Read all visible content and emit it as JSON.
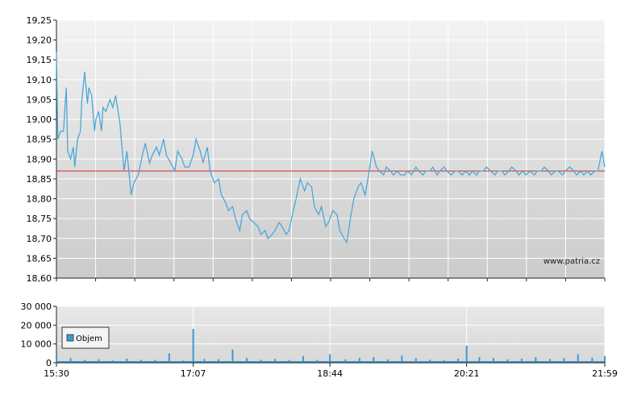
{
  "chart_data": [
    {
      "type": "line",
      "panel": "price",
      "xlim": [
        "15:30",
        "21:59"
      ],
      "ylim": [
        18.6,
        19.25
      ],
      "y_ticks": [
        "19,25",
        "19,20",
        "19,15",
        "19,10",
        "19,05",
        "19,00",
        "18,95",
        "18,90",
        "18,85",
        "18,80",
        "18,75",
        "18,70",
        "18,65",
        "18,60"
      ],
      "reference_line": 18.87,
      "watermark": "www.patria.cz",
      "colors": {
        "line": "#4aa8d8",
        "reference": "#d22b2b",
        "grid": "#ffffff",
        "bg_top": "#f0f0f0",
        "bg_bottom": "#cfcfcf"
      },
      "grid": true,
      "series": [
        {
          "x": [
            "15:30",
            "15:31",
            "15:33",
            "15:35",
            "15:37",
            "15:38",
            "15:40",
            "15:42",
            "15:43",
            "15:45",
            "15:47",
            "15:48",
            "15:50",
            "15:52",
            "15:53",
            "15:55",
            "15:57",
            "15:58",
            "16:00",
            "16:02",
            "16:03",
            "16:05",
            "16:07",
            "16:08",
            "16:10",
            "16:12",
            "16:15",
            "16:18",
            "16:20",
            "16:23",
            "16:25",
            "16:28",
            "16:31",
            "16:33",
            "16:36",
            "16:38",
            "16:41",
            "16:43",
            "16:46",
            "16:48",
            "16:51",
            "16:54",
            "16:56",
            "16:59",
            "17:01",
            "17:04",
            "17:07",
            "17:09",
            "17:12",
            "17:14",
            "17:17",
            "17:19",
            "17:22",
            "17:25",
            "17:27",
            "17:30",
            "17:32",
            "17:35",
            "17:37",
            "17:40",
            "17:42",
            "17:45",
            "17:47",
            "17:50",
            "17:53",
            "17:55",
            "17:58",
            "18:00",
            "18:03",
            "18:05",
            "18:08",
            "18:10",
            "18:13",
            "18:15",
            "18:18",
            "18:20",
            "18:23",
            "18:26",
            "18:28",
            "18:31",
            "18:33",
            "18:36",
            "18:38",
            "18:41",
            "18:43",
            "18:46",
            "18:49",
            "18:51",
            "18:54",
            "18:56",
            "18:59",
            "19:01",
            "19:04",
            "19:06",
            "19:09",
            "19:11",
            "19:14",
            "19:17",
            "19:19",
            "19:22",
            "19:24",
            "19:27",
            "19:29",
            "19:32",
            "19:34",
            "19:37",
            "19:39",
            "19:42",
            "19:45",
            "19:47",
            "19:50",
            "19:52",
            "19:55",
            "19:57",
            "20:00",
            "20:02",
            "20:05",
            "20:07",
            "20:10",
            "20:13",
            "20:15",
            "20:18",
            "20:20",
            "20:23",
            "20:25",
            "20:28",
            "20:30",
            "20:33",
            "20:35",
            "20:38",
            "20:41",
            "20:43",
            "20:46",
            "20:48",
            "20:51",
            "20:53",
            "20:56",
            "20:58",
            "21:01",
            "21:03",
            "21:06",
            "21:09",
            "21:11",
            "21:14",
            "21:16",
            "21:19",
            "21:21",
            "21:24",
            "21:26",
            "21:29",
            "21:31",
            "21:34",
            "21:37",
            "21:39",
            "21:42",
            "21:44",
            "21:47",
            "21:49",
            "21:52",
            "21:54",
            "21:57",
            "21:59"
          ],
          "y": [
            19.17,
            18.95,
            18.97,
            18.97,
            19.08,
            18.92,
            18.9,
            18.93,
            18.88,
            18.95,
            18.97,
            19.05,
            19.12,
            19.04,
            19.08,
            19.06,
            18.97,
            19.0,
            19.02,
            18.97,
            19.03,
            19.02,
            19.04,
            19.05,
            19.03,
            19.06,
            18.99,
            18.87,
            18.92,
            18.81,
            18.84,
            18.86,
            18.91,
            18.94,
            18.89,
            18.91,
            18.93,
            18.91,
            18.95,
            18.91,
            18.89,
            18.87,
            18.92,
            18.9,
            18.88,
            18.88,
            18.91,
            18.95,
            18.92,
            18.89,
            18.93,
            18.87,
            18.84,
            18.85,
            18.81,
            18.79,
            18.77,
            18.78,
            18.75,
            18.72,
            18.76,
            18.77,
            18.75,
            18.74,
            18.73,
            18.71,
            18.72,
            18.7,
            18.71,
            18.72,
            18.74,
            18.73,
            18.71,
            18.72,
            18.77,
            18.8,
            18.85,
            18.82,
            18.84,
            18.83,
            18.78,
            18.76,
            18.78,
            18.73,
            18.74,
            18.77,
            18.76,
            18.72,
            18.7,
            18.69,
            18.76,
            18.8,
            18.83,
            18.84,
            18.81,
            18.85,
            18.92,
            18.88,
            18.87,
            18.86,
            18.88,
            18.87,
            18.86,
            18.87,
            18.86,
            18.86,
            18.87,
            18.86,
            18.88,
            18.87,
            18.86,
            18.87,
            18.87,
            18.88,
            18.86,
            18.87,
            18.88,
            18.87,
            18.86,
            18.87,
            18.87,
            18.86,
            18.87,
            18.86,
            18.87,
            18.86,
            18.87,
            18.87,
            18.88,
            18.87,
            18.86,
            18.87,
            18.87,
            18.86,
            18.87,
            18.88,
            18.87,
            18.86,
            18.87,
            18.86,
            18.87,
            18.86,
            18.87,
            18.87,
            18.88,
            18.87,
            18.86,
            18.87,
            18.87,
            18.86,
            18.87,
            18.88,
            18.87,
            18.86,
            18.87,
            18.86,
            18.87,
            18.86,
            18.87,
            18.87,
            18.92,
            18.88
          ]
        }
      ]
    },
    {
      "type": "bar",
      "panel": "volume",
      "xlim": [
        "15:30",
        "21:59"
      ],
      "ylim": [
        0,
        30000
      ],
      "y_ticks": [
        "30 000",
        "20 000",
        "10 000",
        "0"
      ],
      "x_ticks": [
        "15:30",
        "17:07",
        "18:44",
        "20:21",
        "21:59"
      ],
      "legend": {
        "label": "Objem",
        "position": "top-left"
      },
      "colors": {
        "bar": "#3a9bd0",
        "legend_swatch": "#3a9bd0"
      },
      "grid": true,
      "series": [
        {
          "name": "Objem",
          "x": [
            "15:30",
            "15:40",
            "15:50",
            "16:00",
            "16:10",
            "16:20",
            "16:30",
            "16:40",
            "16:50",
            "17:00",
            "17:07",
            "17:15",
            "17:25",
            "17:35",
            "17:45",
            "17:55",
            "18:05",
            "18:15",
            "18:25",
            "18:35",
            "18:44",
            "18:55",
            "19:05",
            "19:15",
            "19:25",
            "19:35",
            "19:45",
            "19:55",
            "20:05",
            "20:15",
            "20:21",
            "20:30",
            "20:40",
            "20:50",
            "21:00",
            "21:10",
            "21:20",
            "21:30",
            "21:40",
            "21:50",
            "21:59"
          ],
          "values": [
            3000,
            2500,
            1500,
            1800,
            1200,
            2200,
            1600,
            1500,
            5000,
            1200,
            18000,
            2000,
            1800,
            7000,
            2500,
            1600,
            2000,
            1400,
            3500,
            1500,
            4500,
            1800,
            2600,
            3000,
            1800,
            3800,
            2500,
            1600,
            1300,
            2200,
            9000,
            3000,
            2500,
            1800,
            2200,
            3000,
            2000,
            2500,
            4500,
            2600,
            3500
          ]
        }
      ]
    }
  ]
}
